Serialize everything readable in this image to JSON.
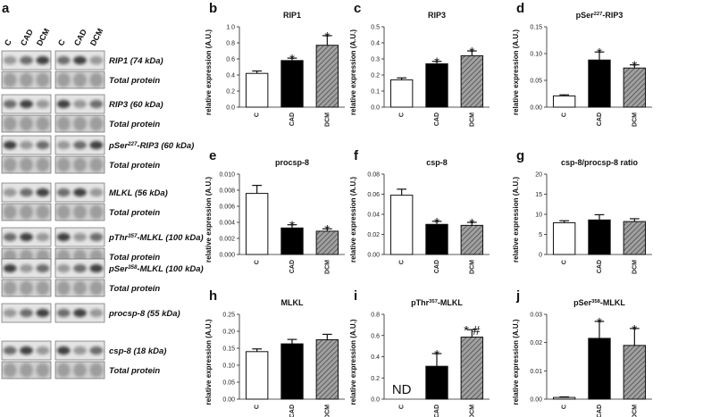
{
  "blot": {
    "panel": "a",
    "lanes": [
      "C",
      "CAD",
      "DCM",
      "C",
      "CAD",
      "DCM"
    ],
    "rows": [
      {
        "label": [
          "RIP1 (74 kDa)"
        ],
        "total": "Total protein"
      },
      {
        "label": [
          "RIP3 (60 kDa)"
        ],
        "total": "Total protein"
      },
      {
        "label": [
          "pSer",
          "227",
          "-RIP3 (60 kDa)"
        ],
        "total": "Total protein"
      },
      {
        "label": [
          "MLKL (56 kDa)"
        ],
        "total": "Total protein"
      },
      {
        "label": [
          "pThr",
          "357",
          "-MLKL (100 kDa)"
        ],
        "total": "Total protein"
      },
      {
        "label": [
          "pSer",
          "358",
          "-MLKL (100 kDa)"
        ],
        "total": "Total protein"
      },
      {
        "label": [
          "procsp-8 (55 kDa)"
        ]
      },
      {
        "label": [
          "csp-8 (18 kDa)"
        ],
        "total": "Total protein"
      }
    ]
  },
  "chart_data": [
    {
      "type": "bar",
      "panel": "b",
      "title": [
        "RIP1"
      ],
      "y_label": "relative expression (A.U.)",
      "categories": [
        "C",
        "CAD",
        "DCM"
      ],
      "values": [
        0.42,
        0.58,
        0.77
      ],
      "errors": [
        0.03,
        0.03,
        0.12
      ],
      "annotations": [
        null,
        "*",
        "*"
      ],
      "colors": [
        "#ffffff",
        "#000000",
        "#a0a0a0"
      ],
      "hatched": [
        false,
        false,
        true
      ],
      "ylim": [
        0,
        1.0
      ],
      "yticks": [
        {
          "value": 0,
          "label": "0.0"
        },
        0.2,
        0.4,
        0.6,
        0.8,
        {
          "value": 1.0,
          "label": "1.0"
        }
      ]
    },
    {
      "type": "bar",
      "panel": "c",
      "title": [
        "RIP3"
      ],
      "y_label": "relative expression (A.U.)",
      "categories": [
        "C",
        "CAD",
        "DCM"
      ],
      "values": [
        0.17,
        0.27,
        0.32
      ],
      "errors": [
        0.012,
        0.015,
        0.03
      ],
      "annotations": [
        null,
        "*",
        "*"
      ],
      "colors": [
        "#ffffff",
        "#000000",
        "#a0a0a0"
      ],
      "hatched": [
        false,
        false,
        true
      ],
      "ylim": [
        0,
        0.5
      ],
      "yticks": [
        {
          "value": 0,
          "label": "0.0"
        },
        0.1,
        0.2,
        0.3,
        0.4,
        0.5
      ]
    },
    {
      "type": "bar",
      "panel": "d",
      "title": [
        "pSer",
        "227",
        "-RIP3"
      ],
      "y_label": "relative expression (A.U.)",
      "categories": [
        "C",
        "CAD",
        "DCM"
      ],
      "values": [
        0.021,
        0.088,
        0.073
      ],
      "errors": [
        0.002,
        0.015,
        0.006
      ],
      "annotations": [
        null,
        "*",
        "*"
      ],
      "colors": [
        "#ffffff",
        "#000000",
        "#a0a0a0"
      ],
      "hatched": [
        false,
        false,
        true
      ],
      "ylim": [
        0,
        0.15
      ],
      "yticks": [
        {
          "value": 0,
          "label": "0.00"
        },
        0.05,
        {
          "value": 0.1,
          "label": "0.10"
        },
        0.15
      ]
    },
    {
      "type": "bar",
      "panel": "e",
      "title": [
        "procsp-8"
      ],
      "y_label": "relative expression (A.U.)",
      "categories": [
        "C",
        "CAD",
        "DCM"
      ],
      "values": [
        0.0076,
        0.0033,
        0.0029
      ],
      "errors": [
        0.001,
        0.0004,
        0.0003
      ],
      "annotations": [
        null,
        "*",
        "*"
      ],
      "colors": [
        "#ffffff",
        "#000000",
        "#a0a0a0"
      ],
      "hatched": [
        false,
        false,
        true
      ],
      "ylim": [
        0,
        0.01
      ],
      "yticks": [
        {
          "value": 0,
          "label": "0.000"
        },
        0.002,
        0.004,
        0.006,
        0.008,
        {
          "value": 0.01,
          "label": "0.010"
        }
      ]
    },
    {
      "type": "bar",
      "panel": "f",
      "title": [
        "csp-8"
      ],
      "y_label": "relative expression (A.U.)",
      "categories": [
        "C",
        "CAD",
        "DCM"
      ],
      "values": [
        0.059,
        0.03,
        0.029
      ],
      "errors": [
        0.006,
        0.003,
        0.003
      ],
      "annotations": [
        null,
        "*",
        "*"
      ],
      "colors": [
        "#ffffff",
        "#000000",
        "#a0a0a0"
      ],
      "hatched": [
        false,
        false,
        true
      ],
      "ylim": [
        0,
        0.08
      ],
      "yticks": [
        {
          "value": 0,
          "label": "0.00"
        },
        0.02,
        0.04,
        0.06,
        0.08
      ]
    },
    {
      "type": "bar",
      "panel": "g",
      "title": [
        "csp-8/procsp-8 ratio"
      ],
      "y_label": "relative expression (A.U.)",
      "categories": [
        "C",
        "CAD",
        "DCM"
      ],
      "values": [
        7.9,
        8.6,
        8.2
      ],
      "errors": [
        0.5,
        1.3,
        0.7
      ],
      "annotations": [
        null,
        null,
        null
      ],
      "colors": [
        "#ffffff",
        "#000000",
        "#a0a0a0"
      ],
      "hatched": [
        false,
        false,
        true
      ],
      "ylim": [
        0,
        20
      ],
      "yticks": [
        0,
        5,
        10,
        15,
        20
      ]
    },
    {
      "type": "bar",
      "panel": "h",
      "title": [
        "MLKL"
      ],
      "y_label": "relative expression (A.U.)",
      "categories": [
        "C",
        "CAD",
        "DCM"
      ],
      "values": [
        0.14,
        0.163,
        0.175
      ],
      "errors": [
        0.008,
        0.013,
        0.016
      ],
      "annotations": [
        null,
        null,
        null
      ],
      "colors": [
        "#ffffff",
        "#000000",
        "#a0a0a0"
      ],
      "hatched": [
        false,
        false,
        true
      ],
      "ylim": [
        0,
        0.25
      ],
      "yticks": [
        {
          "value": 0,
          "label": "0.00"
        },
        0.05,
        {
          "value": 0.1,
          "label": "0.10"
        },
        0.15,
        {
          "value": 0.2,
          "label": "0.20"
        },
        0.25
      ]
    },
    {
      "type": "bar",
      "panel": "i",
      "title": [
        "pThr",
        "357",
        "-MLKL"
      ],
      "y_label": "relative expression (A.U.)",
      "categories": [
        "C",
        "CAD",
        "DCM"
      ],
      "values": [
        null,
        0.31,
        0.585
      ],
      "errors": [
        null,
        0.12,
        0.07
      ],
      "annotations": [
        "ND",
        "*",
        "* #"
      ],
      "colors": [
        "#ffffff",
        "#000000",
        "#a0a0a0"
      ],
      "hatched": [
        false,
        false,
        true
      ],
      "ylim": [
        0,
        0.8
      ],
      "yticks": [
        {
          "value": 0,
          "label": "0.0"
        },
        0.2,
        0.4,
        0.6,
        0.8
      ]
    },
    {
      "type": "bar",
      "panel": "j",
      "title": [
        "pSer",
        "358",
        "-MLKL"
      ],
      "y_label": "relative expression (A.U.)",
      "categories": [
        "C",
        "CAD",
        "DCM"
      ],
      "values": [
        0.0006,
        0.0215,
        0.019
      ],
      "errors": [
        0.0002,
        0.006,
        0.006
      ],
      "annotations": [
        null,
        "*",
        "*"
      ],
      "colors": [
        "#ffffff",
        "#000000",
        "#a0a0a0"
      ],
      "hatched": [
        false,
        false,
        true
      ],
      "ylim": [
        0,
        0.03
      ],
      "yticks": [
        {
          "value": 0,
          "label": "0.00"
        },
        0.01,
        0.02,
        0.03
      ]
    }
  ]
}
